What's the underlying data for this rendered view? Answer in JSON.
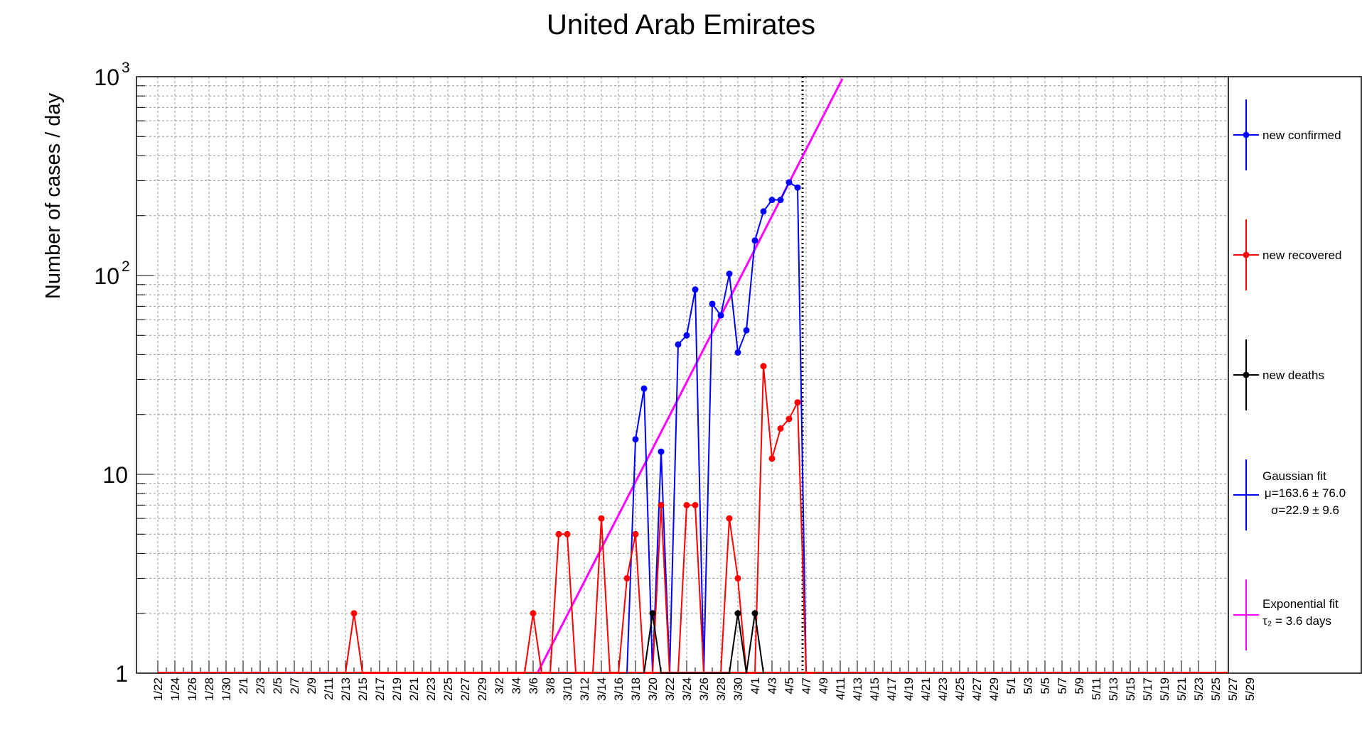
{
  "chart_data": {
    "type": "line",
    "title": "United Arab Emirates",
    "ylabel": "Number of cases / day",
    "xlabel": "",
    "yscale": "log",
    "ylim": [
      1,
      1000
    ],
    "y_ticks": [
      {
        "value": 1,
        "label": "1"
      },
      {
        "value": 10,
        "label": "10"
      },
      {
        "value": 100,
        "label": "10",
        "exp": "2"
      },
      {
        "value": 1000,
        "label": "10",
        "exp": "3"
      }
    ],
    "xlim": [
      0,
      122
    ],
    "x_start": "1/22",
    "x_tick_labels": [
      "1/22",
      "1/24",
      "1/26",
      "1/28",
      "1/30",
      "2/1",
      "2/3",
      "2/5",
      "2/7",
      "2/9",
      "2/11",
      "2/13",
      "2/15",
      "2/17",
      "2/19",
      "2/21",
      "2/23",
      "2/25",
      "2/27",
      "2/29",
      "3/2",
      "3/4",
      "3/6",
      "3/8",
      "3/10",
      "3/12",
      "3/14",
      "3/16",
      "3/18",
      "3/20",
      "3/22",
      "3/24",
      "3/26",
      "3/28",
      "3/30",
      "4/1",
      "4/3",
      "4/5",
      "4/7",
      "4/9",
      "4/11",
      "4/13",
      "4/15",
      "4/17",
      "4/19",
      "4/21",
      "4/23",
      "4/25",
      "4/27",
      "4/29",
      "5/1",
      "5/3",
      "5/5",
      "5/7",
      "5/9",
      "5/11",
      "5/13",
      "5/15",
      "5/17",
      "5/19",
      "5/21",
      "5/23",
      "5/25",
      "5/27",
      "5/29"
    ],
    "grid": true,
    "legend_position": "right",
    "reference_line_date": "4/7",
    "series": [
      {
        "name": "new confirmed",
        "color": "#0000ff",
        "kind": "data",
        "points": [
          [
            "3/18",
            15
          ],
          [
            "3/19",
            27
          ],
          [
            "3/20",
            1
          ],
          [
            "3/21",
            13
          ],
          [
            "3/22",
            1
          ],
          [
            "3/23",
            45
          ],
          [
            "3/24",
            50
          ],
          [
            "3/25",
            85
          ],
          [
            "3/26",
            1
          ],
          [
            "3/27",
            72
          ],
          [
            "3/28",
            63
          ],
          [
            "3/29",
            102
          ],
          [
            "3/30",
            41
          ],
          [
            "3/31",
            53
          ],
          [
            "4/1",
            150
          ],
          [
            "4/2",
            210
          ],
          [
            "4/3",
            240
          ],
          [
            "4/4",
            240
          ],
          [
            "4/5",
            294
          ],
          [
            "4/6",
            277
          ],
          [
            "4/7",
            1
          ]
        ]
      },
      {
        "name": "new recovered",
        "color": "#ff0000",
        "kind": "data",
        "points": [
          [
            "2/14",
            2
          ],
          [
            "3/6",
            2
          ],
          [
            "3/9",
            5
          ],
          [
            "3/10",
            5
          ],
          [
            "3/14",
            6
          ],
          [
            "3/17",
            3
          ],
          [
            "3/18",
            5
          ],
          [
            "3/21",
            7
          ],
          [
            "3/24",
            7
          ],
          [
            "3/25",
            7
          ],
          [
            "3/29",
            6
          ],
          [
            "3/30",
            3
          ],
          [
            "4/2",
            35
          ],
          [
            "4/3",
            12
          ],
          [
            "4/4",
            17
          ],
          [
            "4/5",
            19
          ],
          [
            "4/6",
            23
          ],
          [
            "4/7",
            1
          ]
        ]
      },
      {
        "name": "new deaths",
        "color": "#000000",
        "kind": "data",
        "points": [
          [
            "3/20",
            2
          ],
          [
            "3/30",
            2
          ],
          [
            "4/1",
            2
          ]
        ]
      },
      {
        "name": "Gaussian fit",
        "color": "#0000ff",
        "kind": "gaussian",
        "mu": 163.6,
        "mu_err": 76.0,
        "sigma": 22.9,
        "sigma_err": 9.6,
        "legend_lines": [
          "Gaussian fit",
          "μ=163.6 ± 76.0",
          "σ=22.9 ± 9.6"
        ]
      },
      {
        "name": "Exponential fit",
        "color": "#ff00ff",
        "kind": "exponential",
        "tau2_days": 3.6,
        "legend_lines": [
          "Exponential fit",
          "τ₂ = 3.6 days"
        ]
      }
    ]
  }
}
